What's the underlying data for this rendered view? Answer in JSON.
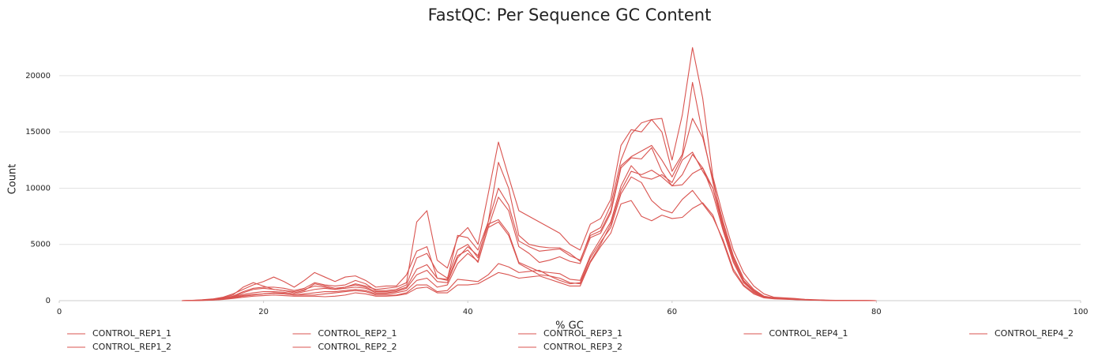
{
  "chart_data": {
    "type": "line",
    "title": "FastQC: Per Sequence GC Content",
    "x_label": "% GC",
    "y_label": "Count",
    "x": [
      12,
      13,
      14,
      15,
      16,
      17,
      18,
      19,
      20,
      21,
      22,
      23,
      24,
      25,
      26,
      27,
      28,
      29,
      30,
      31,
      32,
      33,
      34,
      35,
      36,
      37,
      38,
      39,
      40,
      41,
      42,
      43,
      44,
      45,
      46,
      47,
      48,
      49,
      50,
      51,
      52,
      53,
      54,
      55,
      56,
      57,
      58,
      59,
      60,
      61,
      62,
      63,
      64,
      65,
      66,
      67,
      68,
      69,
      70,
      71,
      72,
      73,
      74,
      75,
      76,
      77,
      78,
      79,
      80
    ],
    "series": [
      {
        "name": "CONTROL_REP1_1",
        "color": "#d9534f",
        "values": [
          0,
          20,
          60,
          120,
          250,
          500,
          1200,
          1600,
          1300,
          1000,
          900,
          700,
          900,
          1500,
          1300,
          1100,
          1200,
          1500,
          1300,
          1000,
          1100,
          1200,
          1600,
          7000,
          8000,
          3600,
          2900,
          5600,
          6500,
          5000,
          9500,
          14100,
          11000,
          8000,
          7500,
          7000,
          6500,
          6000,
          5000,
          4500,
          6800,
          7300,
          9000,
          13800,
          15200,
          15000,
          16100,
          16200,
          12500,
          16500,
          22500,
          18000,
          11000,
          7500,
          4500,
          2500,
          1300,
          600,
          300,
          250,
          200,
          120,
          80,
          50,
          30,
          20,
          10,
          5,
          0
        ]
      },
      {
        "name": "CONTROL_REP1_2",
        "color": "#d9534f",
        "values": [
          0,
          30,
          80,
          150,
          300,
          600,
          1000,
          1400,
          1700,
          2100,
          1700,
          1200,
          1800,
          2500,
          2100,
          1700,
          2100,
          2200,
          1800,
          1200,
          1300,
          1300,
          2300,
          4400,
          4800,
          2000,
          1900,
          5800,
          5600,
          4500,
          7000,
          12300,
          10000,
          5800,
          5000,
          4800,
          4700,
          4700,
          4200,
          3500,
          6000,
          6500,
          8500,
          12500,
          14800,
          15800,
          16100,
          15000,
          11500,
          13000,
          19400,
          14800,
          10500,
          7000,
          4000,
          2000,
          1000,
          400,
          250,
          200,
          150,
          100,
          60,
          40,
          25,
          15,
          10,
          5,
          0
        ]
      },
      {
        "name": "CONTROL_REP2_1",
        "color": "#d9534f",
        "values": [
          0,
          15,
          40,
          100,
          200,
          400,
          800,
          1100,
          1200,
          1200,
          1100,
          900,
          1100,
          1600,
          1400,
          1300,
          1400,
          1800,
          1500,
          900,
          900,
          1000,
          1400,
          3800,
          4200,
          2600,
          2000,
          4500,
          5000,
          3800,
          7000,
          10000,
          8500,
          5300,
          4800,
          4400,
          4500,
          4600,
          4000,
          3600,
          5800,
          6200,
          8000,
          12000,
          12800,
          13300,
          13800,
          12500,
          11000,
          12800,
          16200,
          14500,
          10800,
          6500,
          3800,
          1800,
          900,
          350,
          220,
          180,
          130,
          90,
          60,
          35,
          20,
          12,
          8,
          4,
          0
        ]
      },
      {
        "name": "CONTROL_REP2_2",
        "color": "#d9534f",
        "values": [
          0,
          10,
          40,
          80,
          180,
          350,
          700,
          1000,
          1100,
          1000,
          900,
          800,
          1000,
          1300,
          1200,
          1000,
          1200,
          1400,
          1200,
          800,
          800,
          900,
          1200,
          2800,
          3200,
          2000,
          1800,
          4000,
          4500,
          3400,
          6500,
          9200,
          8000,
          4800,
          4200,
          3400,
          3600,
          3900,
          3500,
          3300,
          5600,
          6000,
          7800,
          11800,
          12700,
          12600,
          13600,
          11500,
          10200,
          11200,
          13000,
          11800,
          10000,
          6400,
          3600,
          1700,
          800,
          300,
          200,
          150,
          110,
          80,
          50,
          30,
          18,
          10,
          6,
          3,
          0
        ]
      },
      {
        "name": "CONTROL_REP3_1",
        "color": "#d9534f",
        "values": [
          0,
          10,
          30,
          60,
          120,
          250,
          400,
          500,
          600,
          700,
          650,
          500,
          500,
          500,
          600,
          700,
          800,
          900,
          800,
          500,
          500,
          500,
          700,
          1400,
          1400,
          800,
          900,
          1900,
          1800,
          1700,
          2300,
          3300,
          3000,
          2500,
          2600,
          2700,
          2200,
          1800,
          1500,
          1600,
          3800,
          5200,
          6500,
          9500,
          11000,
          10500,
          8900,
          8100,
          7800,
          9000,
          9800,
          8600,
          7400,
          5400,
          2800,
          1400,
          700,
          280,
          180,
          150,
          100,
          70,
          45,
          28,
          16,
          9,
          5,
          3,
          0
        ]
      },
      {
        "name": "CONTROL_REP3_2",
        "color": "#d9534f",
        "values": [
          0,
          8,
          25,
          50,
          100,
          200,
          300,
          400,
          450,
          500,
          450,
          400,
          400,
          400,
          350,
          400,
          500,
          700,
          600,
          400,
          400,
          450,
          600,
          1100,
          1200,
          700,
          700,
          1400,
          1400,
          1500,
          2000,
          2500,
          2300,
          2000,
          2100,
          2200,
          1900,
          1600,
          1300,
          1300,
          3400,
          4800,
          6000,
          8600,
          8900,
          7500,
          7100,
          7600,
          7300,
          7400,
          8200,
          8700,
          7600,
          5200,
          2600,
          1300,
          600,
          250,
          160,
          130,
          90,
          60,
          40,
          25,
          15,
          8,
          5,
          2,
          0
        ]
      },
      {
        "name": "CONTROL_REP4_1",
        "color": "#d9534f",
        "values": [
          0,
          12,
          40,
          90,
          180,
          350,
          550,
          700,
          800,
          800,
          750,
          600,
          800,
          1000,
          1100,
          1000,
          1100,
          1200,
          1100,
          700,
          700,
          800,
          1100,
          2300,
          2700,
          1700,
          1600,
          3800,
          4800,
          4000,
          6800,
          7200,
          6000,
          3400,
          3000,
          2600,
          2500,
          2400,
          1900,
          1800,
          4000,
          5500,
          7000,
          10200,
          12000,
          11000,
          10800,
          11200,
          10500,
          12500,
          13200,
          11500,
          10000,
          6800,
          3800,
          1800,
          900,
          350,
          220,
          180,
          130,
          90,
          55,
          35,
          20,
          12,
          7,
          3,
          0
        ]
      },
      {
        "name": "CONTROL_REP4_2",
        "color": "#d9534f",
        "values": [
          0,
          10,
          30,
          70,
          150,
          300,
          450,
          550,
          600,
          650,
          600,
          500,
          600,
          700,
          800,
          800,
          900,
          1000,
          900,
          600,
          600,
          700,
          900,
          1800,
          2000,
          1200,
          1400,
          3300,
          4200,
          3500,
          6500,
          7000,
          5800,
          3300,
          2800,
          2300,
          2200,
          2000,
          1600,
          1500,
          3500,
          5000,
          6800,
          9800,
          11500,
          11200,
          11600,
          11000,
          10200,
          10300,
          11300,
          11800,
          9500,
          6200,
          3400,
          1600,
          800,
          300,
          200,
          160,
          120,
          80,
          50,
          30,
          18,
          10,
          6,
          3,
          0
        ]
      }
    ],
    "xlim": [
      0,
      100
    ],
    "xticks": [
      0,
      20,
      40,
      60,
      80,
      100
    ],
    "ylim": [
      0,
      23500
    ],
    "yticks": [
      0,
      5000,
      10000,
      15000,
      20000
    ],
    "grid": true,
    "legend_loc": "bottom",
    "legend_columns": 5
  }
}
